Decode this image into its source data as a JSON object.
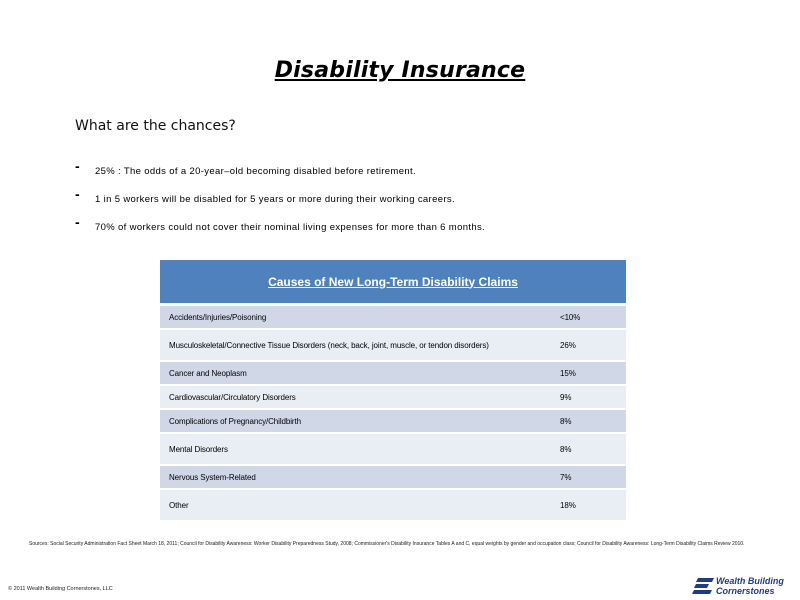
{
  "title": "Disability Insurance",
  "question": "What are the chances?",
  "bullets": [
    "25% : The odds of a 20-year–old becoming disabled before retirement.",
    "1 in 5 workers will be disabled for 5 years or more during their working careers.",
    "70% of workers could not cover their nominal living expenses for more than 6 months."
  ],
  "table": {
    "header": "Causes of New Long-Term Disability Claims",
    "rows": [
      {
        "cause": "Accidents/Injuries/Poisoning",
        "value": "<10%"
      },
      {
        "cause": "Musculoskeletal/Connective Tissue Disorders (neck, back, joint, muscle, or tendon disorders)",
        "value": "26%"
      },
      {
        "cause": "Cancer and Neoplasm",
        "value": "15%"
      },
      {
        "cause": "Cardiovascular/Circulatory Disorders",
        "value": "9%"
      },
      {
        "cause": "Complications of Pregnancy/Childbirth",
        "value": "8%"
      },
      {
        "cause": "Mental Disorders",
        "value": "8%"
      },
      {
        "cause": "Nervous System-Related",
        "value": "7%"
      },
      {
        "cause": "Other",
        "value": "18%"
      }
    ]
  },
  "sources": "Sources: Social Security Administration Fact Sheet March 18, 2011; Council for Disability Awareness: Worker Disability Preparedness Study, 2008; Commissioner's Disability Insurance Tables A and C, equal weights by gender and occupation class; Council for Disability Awareness: Long-Term Disability Claims Review 2010.",
  "copyright": "© 2011 Wealth Building Cornerstones, LLC",
  "logo": {
    "line1": "Wealth Building",
    "line2": "Cornerstones",
    "color": "#1f3c88"
  },
  "colors": {
    "header_bg": "#4f81bd",
    "row_dark": "#d0d8e8",
    "row_light": "#e9edf4"
  }
}
